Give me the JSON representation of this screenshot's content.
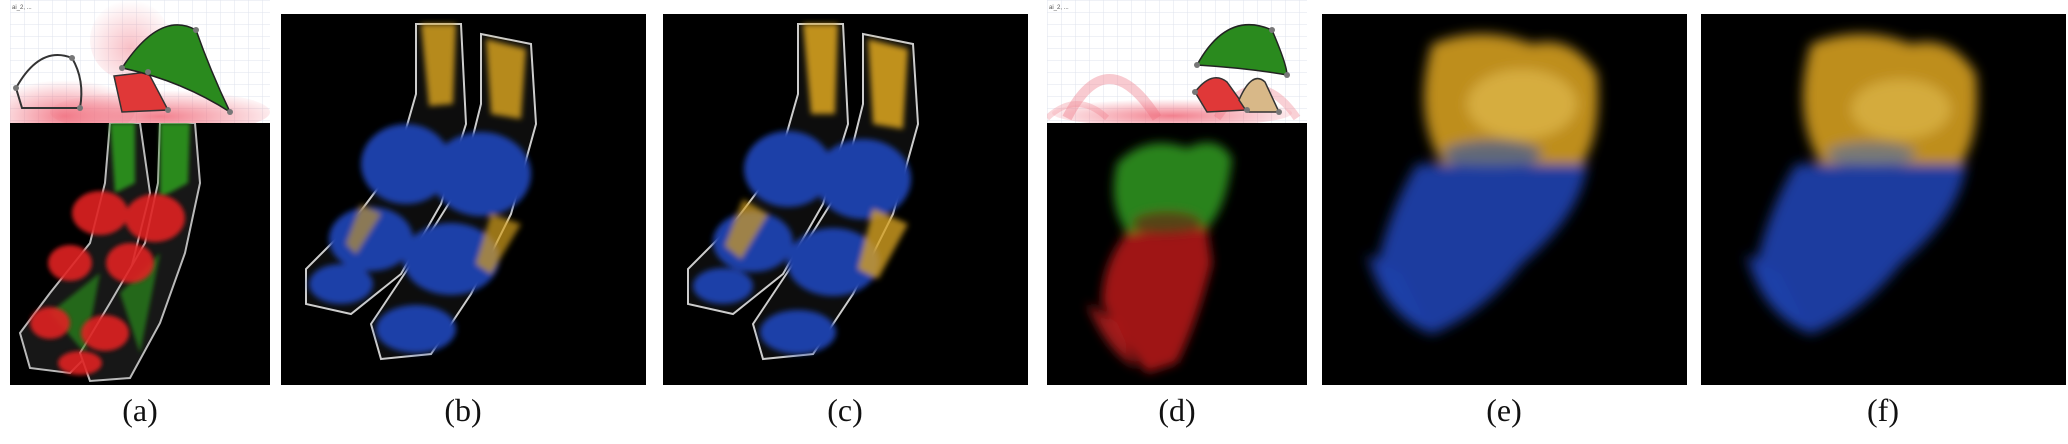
{
  "figure": {
    "panels": [
      {
        "id": "a",
        "caption": "(a)",
        "content": "transfer-function-widget-and-feet-render",
        "tf_label": "ai_2, ..."
      },
      {
        "id": "b",
        "caption": "(b)",
        "content": "feet-render-yellow-blue"
      },
      {
        "id": "c",
        "caption": "(c)",
        "content": "feet-render-yellow-blue-refined"
      },
      {
        "id": "d",
        "caption": "(d)",
        "content": "transfer-function-widget-and-tooth-render",
        "tf_label": "ai_2, ..."
      },
      {
        "id": "e",
        "caption": "(e)",
        "content": "tooth-render-yellow-blue"
      },
      {
        "id": "f",
        "caption": "(f)",
        "content": "tooth-render-yellow-blue-refined"
      }
    ],
    "colors": {
      "background_render": "#000000",
      "green": "#2a8a1e",
      "red": "#e02020",
      "yellow": "#d4a020",
      "blue": "#1e3fa8",
      "tan": "#d8b888",
      "white_outline": "#e6e6e6"
    }
  }
}
